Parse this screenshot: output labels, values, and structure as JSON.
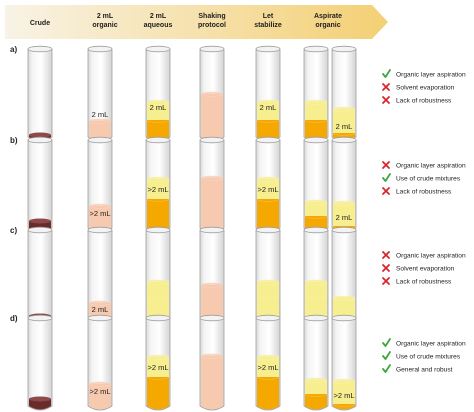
{
  "header": {
    "steps": [
      {
        "lines": [
          "Crude"
        ]
      },
      {
        "lines": [
          "2 mL",
          "organic"
        ]
      },
      {
        "lines": [
          "2 mL",
          "aqueous"
        ]
      },
      {
        "lines": [
          "Shaking",
          "protocol"
        ]
      },
      {
        "lines": [
          "Let",
          "stabilize"
        ]
      },
      {
        "lines": [
          "Aspirate",
          "organic"
        ]
      }
    ]
  },
  "rows": [
    {
      "label": "a)",
      "crude_level": "small",
      "volume_labels": {
        "organic": "2 mL",
        "aqueous": "2 mL",
        "stabilize": "2 mL",
        "aspirate": "2 mL"
      },
      "tube_pattern": "small",
      "outcomes": [
        {
          "status": "check",
          "text": "Organic layer aspiration"
        },
        {
          "status": "cross",
          "text": "Solvent evaporation"
        },
        {
          "status": "cross",
          "text": "Lack of robustness"
        }
      ]
    },
    {
      "label": "b)",
      "crude_level": "large",
      "volume_labels": {
        "organic": ">2 mL",
        "aqueous": ">2 mL",
        "stabilize": ">2 mL",
        "aspirate": "2 mL"
      },
      "tube_pattern": "large",
      "outcomes": [
        {
          "status": "cross",
          "text": "Organic layer aspiration"
        },
        {
          "status": "check",
          "text": "Use of crude mixtures"
        },
        {
          "status": "cross",
          "text": "Lack of robustness"
        }
      ]
    },
    {
      "label": "c)",
      "crude_level": "small",
      "volume_labels": {
        "organic": "2 mL",
        "aqueous": "",
        "stabilize": "",
        "aspirate": ""
      },
      "tube_pattern": "low",
      "outcomes": [
        {
          "status": "cross",
          "text": "Organic layer aspiration"
        },
        {
          "status": "cross",
          "text": "Solvent evaporation"
        },
        {
          "status": "cross",
          "text": "Lack of robustness"
        }
      ]
    },
    {
      "label": "d)",
      "crude_level": "large",
      "volume_labels": {
        "organic": ">2 mL",
        "aqueous": ">2 mL",
        "stabilize": ">2 mL",
        "aspirate": ">2 mL"
      },
      "tube_pattern": "large",
      "outcomes": [
        {
          "status": "check",
          "text": "Organic layer aspiration"
        },
        {
          "status": "check",
          "text": "Use of crude mixtures"
        },
        {
          "status": "check",
          "text": "General and robust"
        }
      ]
    }
  ],
  "colors": {
    "arrow_start": "#f7f1e3",
    "arrow_end": "#f4d27a",
    "crude": "#6b2b2b",
    "organic_peach": "#f7c9ae",
    "organic_yellow": "#f7ee8f",
    "aqueous_orange": "#f5a800",
    "check": "#3ba63b",
    "cross": "#d8262b",
    "glass_stroke": "#9e9e9e"
  }
}
